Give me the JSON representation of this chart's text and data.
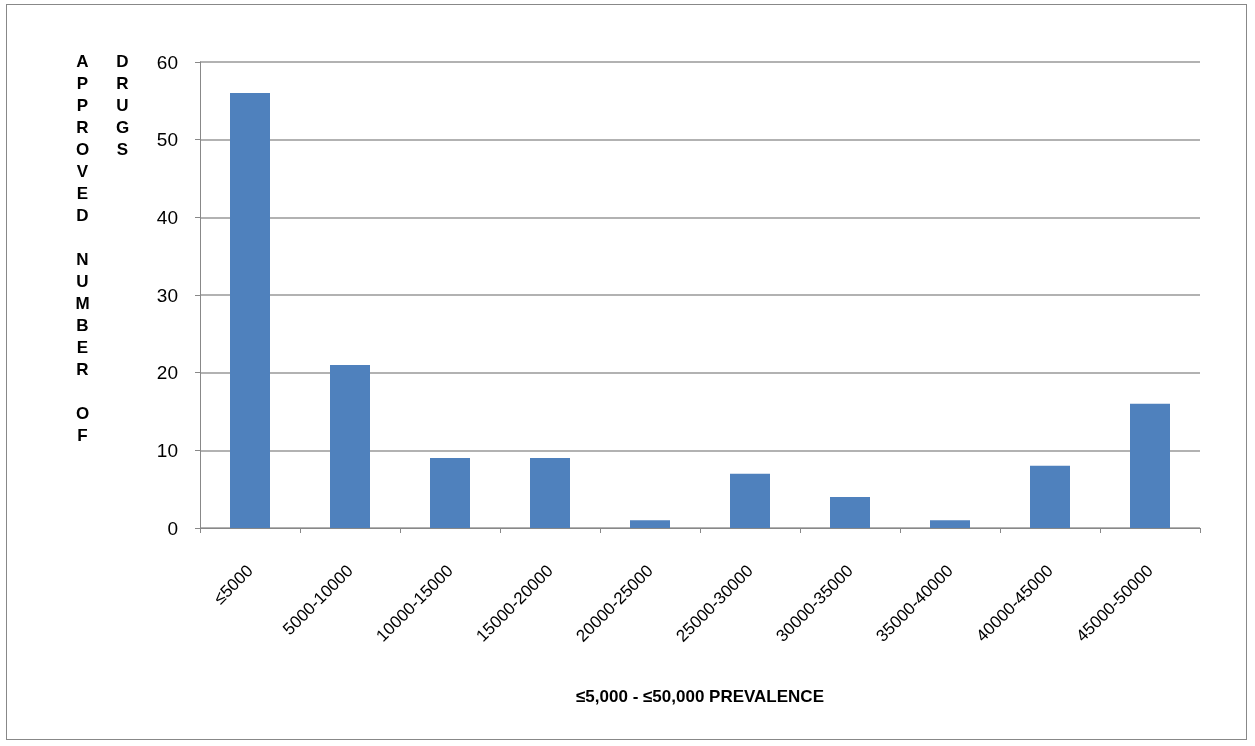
{
  "chart_data": {
    "type": "bar",
    "xlabel": "≤5,000 - ≤50,000 PREVALENCE",
    "ylabel": "APPROVED NUMBER OF DRUGS",
    "categories": [
      "≤5000",
      "5000-10000",
      "10000-15000",
      "15000-20000",
      "20000-25000",
      "25000-30000",
      "30000-35000",
      "35000-40000",
      "40000-45000",
      "45000-50000"
    ],
    "values": [
      56,
      21,
      9,
      9,
      1,
      7,
      4,
      1,
      8,
      16
    ],
    "color": "#4f81bd",
    "ylim": [
      0,
      60
    ],
    "yticks": [
      0,
      10,
      20,
      30,
      40,
      50,
      60
    ],
    "grid": "y"
  }
}
